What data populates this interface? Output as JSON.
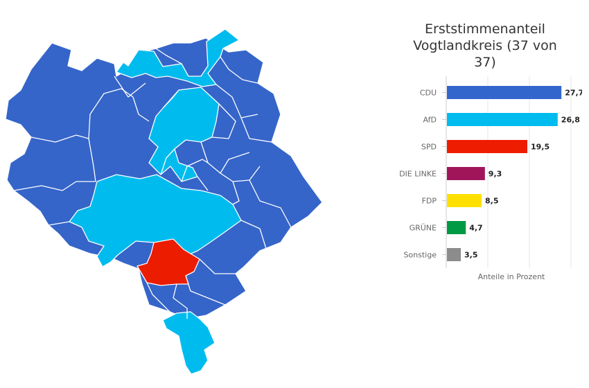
{
  "chart_data": {
    "type": "bar",
    "orientation": "horizontal",
    "title": "Erststimmenanteil Vogtlandkreis (37 von 37)",
    "xlabel": "Anteile in Prozent",
    "ylabel": "",
    "xlim": [
      0,
      30
    ],
    "grid": true,
    "categories": [
      "CDU",
      "AfD",
      "SPD",
      "DIE LINKE",
      "FDP",
      "GRÜNE",
      "Sonstige"
    ],
    "values": [
      27.7,
      26.8,
      19.5,
      9.3,
      8.5,
      4.7,
      3.5
    ],
    "value_labels": [
      "27,7",
      "26,8",
      "19,5",
      "9,3",
      "8,5",
      "4,7",
      "3,5"
    ],
    "colors": [
      "#3366cc",
      "#00bcee",
      "#ee1c00",
      "#a0145a",
      "#ffe000",
      "#009944",
      "#8c8c8c"
    ]
  },
  "map": {
    "party_colors": {
      "CDU": "#3565c9",
      "AfD": "#00bcee",
      "SPD": "#ec1c00"
    }
  }
}
